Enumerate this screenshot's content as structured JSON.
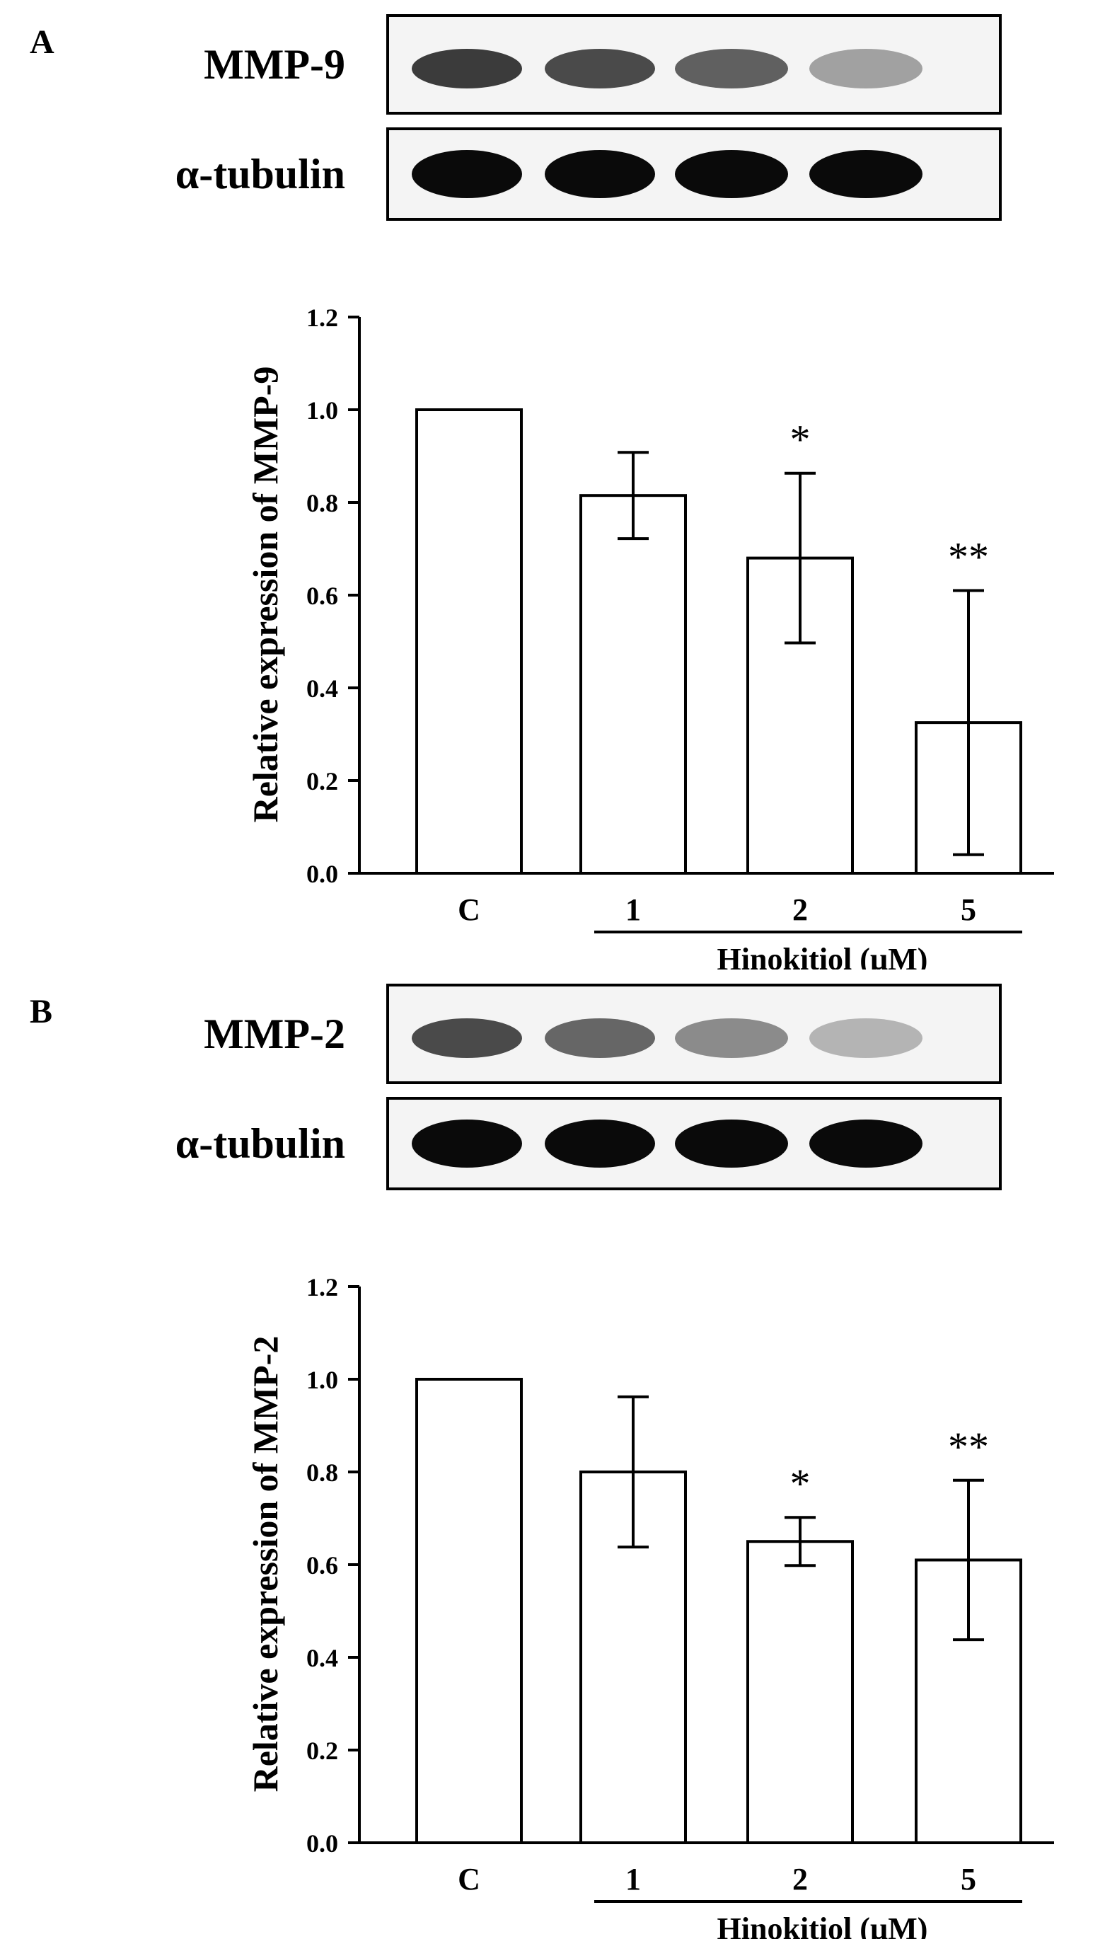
{
  "chart_data": [
    {
      "type": "bar",
      "panel_label": "A",
      "blot": {
        "bands": [
          {
            "label": "MMP-9",
            "intensities": [
              0.85,
              0.8,
              0.72,
              0.45
            ]
          },
          {
            "label": "α-tubulin",
            "intensities": [
              1.0,
              1.0,
              1.0,
              1.0
            ]
          }
        ]
      },
      "categories": [
        "C",
        "1",
        "2",
        "5"
      ],
      "values": [
        1.0,
        0.815,
        0.68,
        0.325
      ],
      "errors": [
        0,
        0.093,
        0.183,
        0.285
      ],
      "significance": [
        "",
        "",
        "*",
        "**"
      ],
      "title": "",
      "ylabel": "Relative expression  of MMP-9",
      "group_label": "Hinokitiol  (µM)",
      "ylim": [
        0,
        1.2
      ],
      "yticks": [
        "0.0",
        "0.2",
        "0.4",
        "0.6",
        "0.8",
        "1.0",
        "1.2"
      ],
      "grid": false,
      "bar_fill": "#ffffff",
      "bar_stroke": "#000000"
    },
    {
      "type": "bar",
      "panel_label": "B",
      "blot": {
        "bands": [
          {
            "label": "MMP-2",
            "intensities": [
              0.8,
              0.7,
              0.55,
              0.35
            ]
          },
          {
            "label": "α-tubulin",
            "intensities": [
              1.0,
              1.0,
              1.0,
              1.0
            ]
          }
        ]
      },
      "categories": [
        "C",
        "1",
        "2",
        "5"
      ],
      "values": [
        1.0,
        0.8,
        0.65,
        0.61
      ],
      "errors": [
        0,
        0.162,
        0.052,
        0.172
      ],
      "significance": [
        "",
        "",
        "*",
        "**"
      ],
      "title": "",
      "ylabel": "Relative expression  of MMP-2",
      "group_label": "Hinokitiol  (µM)",
      "ylim": [
        0,
        1.2
      ],
      "yticks": [
        "0.0",
        "0.2",
        "0.4",
        "0.6",
        "0.8",
        "1.0",
        "1.2"
      ],
      "grid": false,
      "bar_fill": "#ffffff",
      "bar_stroke": "#000000"
    }
  ]
}
